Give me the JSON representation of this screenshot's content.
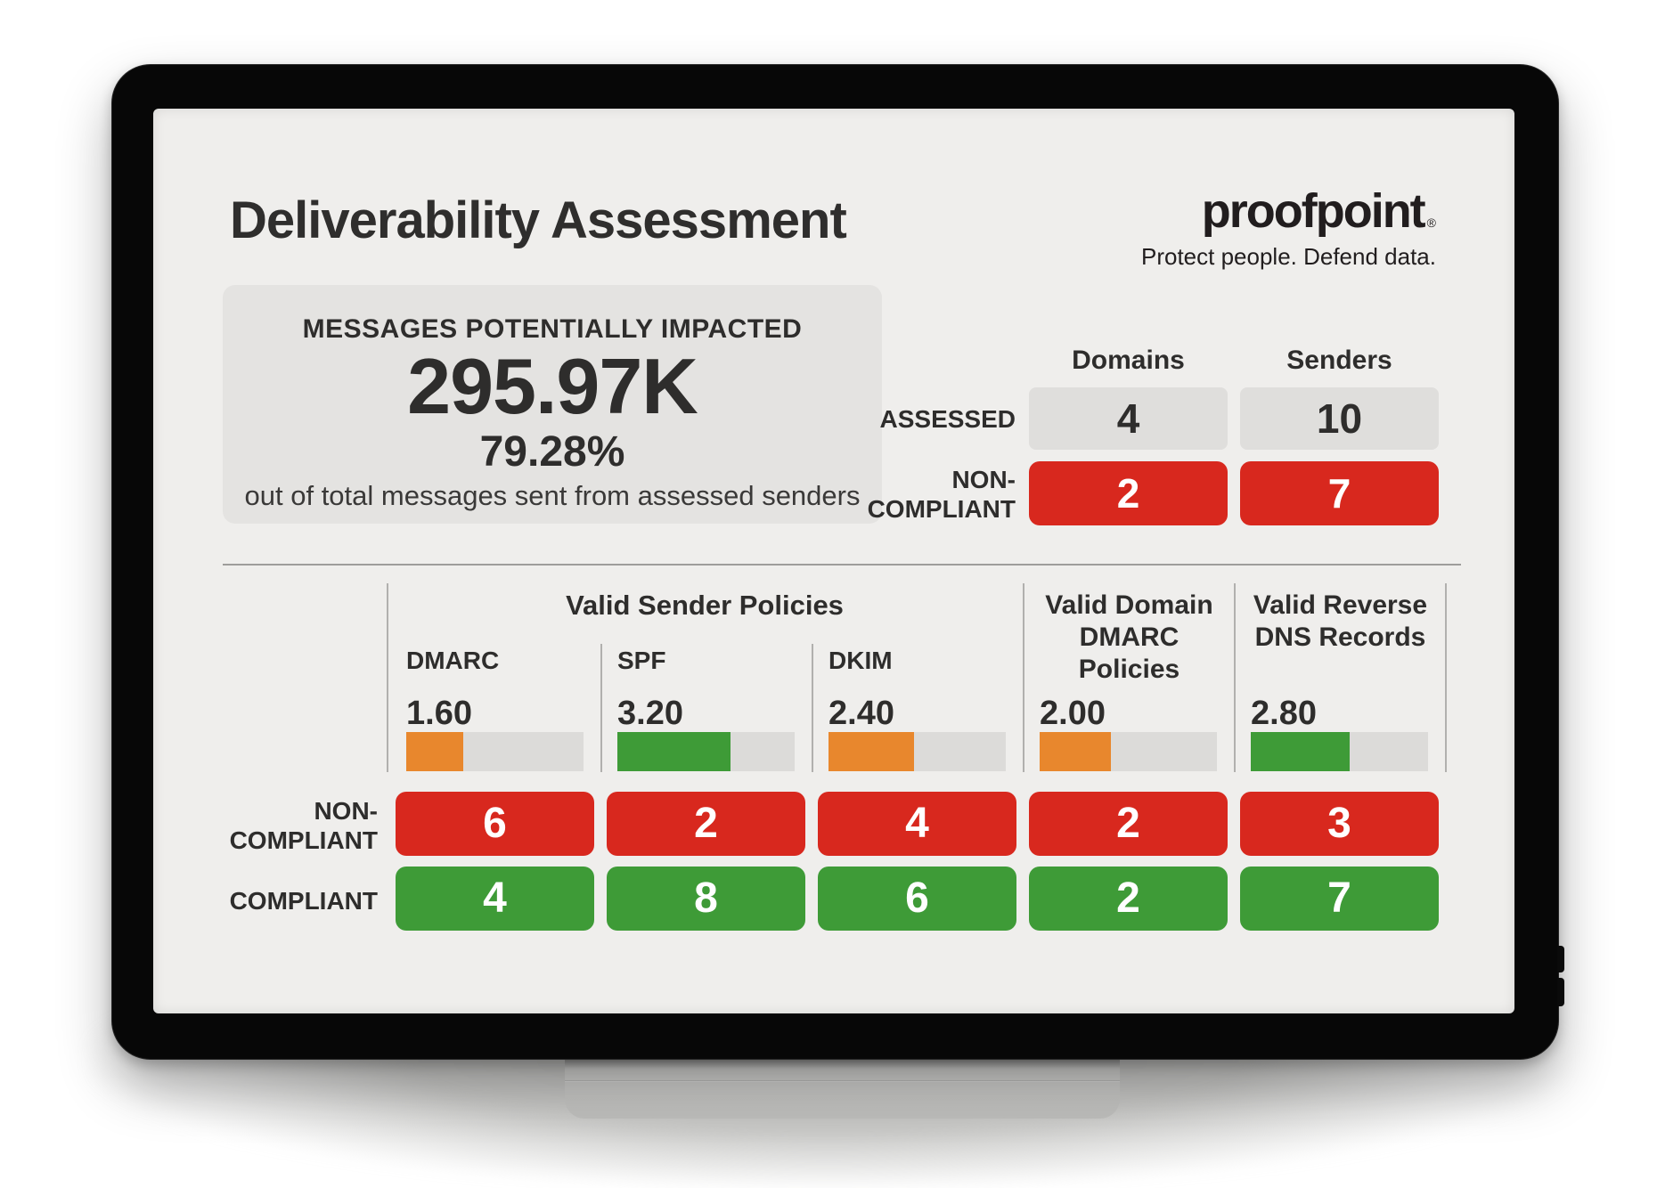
{
  "header": {
    "title": "Deliverability Assessment",
    "logo": {
      "wordmark": "proofpoint",
      "registered_mark": "®",
      "tagline": "Protect people. Defend data."
    }
  },
  "impact_summary": {
    "label": "MESSAGES POTENTIALLY IMPACTED",
    "value": "295.97K",
    "percent": "79.28%",
    "caption": "out of total messages sent from assessed senders"
  },
  "assessment_summary": {
    "column_headers": [
      "Domains",
      "Senders"
    ],
    "assessed": {
      "label": "ASSESSED",
      "domains": "4",
      "senders": "10"
    },
    "non_compliant": {
      "label_lines": [
        "NON-",
        "COMPLIANT"
      ],
      "domains": "2",
      "senders": "7"
    }
  },
  "policy_table": {
    "group_header": "Valid Sender Policies",
    "score_max": 5,
    "row_labels": {
      "non_compliant_lines": [
        "NON-",
        "COMPLIANT"
      ],
      "compliant": "COMPLIANT"
    },
    "columns": [
      {
        "label": "DMARC",
        "score": "1.60",
        "score_value": 1.6,
        "bar_color": "orange",
        "non_compliant": "6",
        "compliant": "4"
      },
      {
        "label": "SPF",
        "score": "3.20",
        "score_value": 3.2,
        "bar_color": "green",
        "non_compliant": "2",
        "compliant": "8"
      },
      {
        "label": "DKIM",
        "score": "2.40",
        "score_value": 2.4,
        "bar_color": "orange",
        "non_compliant": "4",
        "compliant": "6"
      },
      {
        "label": "Valid Domain DMARC Policies",
        "label_lines": [
          "Valid Domain",
          "DMARC",
          "Policies"
        ],
        "score": "2.00",
        "score_value": 2.0,
        "bar_color": "orange",
        "non_compliant": "2",
        "compliant": "2"
      },
      {
        "label": "Valid Reverse DNS Records",
        "label_lines": [
          "Valid Reverse",
          "DNS Records"
        ],
        "score": "2.80",
        "score_value": 2.8,
        "bar_color": "green",
        "non_compliant": "3",
        "compliant": "7"
      }
    ]
  },
  "colors": {
    "red": "#d8281e",
    "green": "#3e9b37",
    "orange": "#e8872d",
    "neutral_box": "#dfdedc",
    "track": "#dcdbd9",
    "screen_bg": "#efeeec"
  }
}
